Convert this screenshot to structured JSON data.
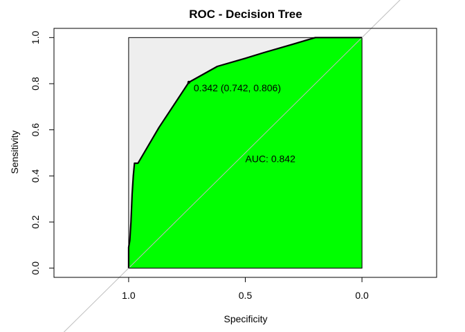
{
  "chart_data": {
    "type": "line",
    "title": "ROC - Decision Tree",
    "xlabel": "Specificity",
    "ylabel": "Sensitivity",
    "xlim": [
      1.32,
      -0.32
    ],
    "ylim": [
      -0.04,
      1.04
    ],
    "x_reversed": true,
    "x_ticks": [
      1.0,
      0.5,
      0.0
    ],
    "x_tick_labels": [
      "1.0",
      "0.5",
      "0.0"
    ],
    "y_ticks": [
      0.0,
      0.2,
      0.4,
      0.6,
      0.8,
      1.0
    ],
    "y_tick_labels": [
      "0.0",
      "0.2",
      "0.4",
      "0.6",
      "0.8",
      "1.0"
    ],
    "grid": false,
    "series": [
      {
        "specificity": [
          1.0,
          1.0,
          0.995,
          0.99,
          0.985,
          0.98,
          0.975,
          0.96,
          0.87,
          0.742,
          0.62,
          0.5,
          0.42,
          0.3,
          0.2,
          0.1,
          0.0
        ],
        "sensitivity": [
          0.0,
          0.09,
          0.12,
          0.2,
          0.32,
          0.4,
          0.455,
          0.455,
          0.61,
          0.806,
          0.875,
          0.91,
          0.935,
          0.97,
          1.0,
          1.0,
          1.0
        ]
      }
    ],
    "annotations": [
      {
        "text": "0.342 (0.742, 0.806)",
        "x": 0.742,
        "y": 0.806,
        "kind": "threshold"
      },
      {
        "text": "AUC: 0.842",
        "x": 0.5,
        "y": 0.475,
        "kind": "auc"
      }
    ],
    "colors": {
      "auc_fill": "#00ff00",
      "full_area_fill": "#eeeeee",
      "roc_line": "#000000",
      "diagonal": "#bebebe",
      "frame": "#000000"
    }
  }
}
